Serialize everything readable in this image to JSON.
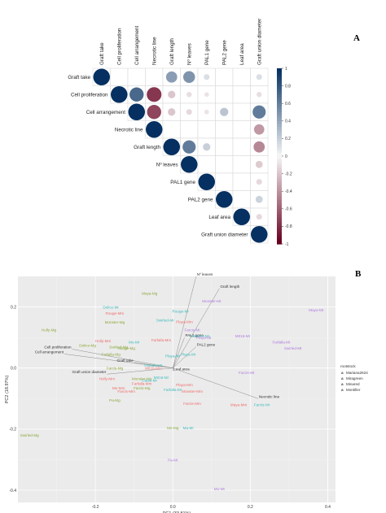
{
  "panel_a_label": "A",
  "panel_b_label": "B",
  "chart_data": [
    {
      "type": "heatmap",
      "variables": [
        "Graft take",
        "Cell proliferation",
        "Cell arrangement",
        "Necrotic line",
        "Graft length",
        "Nº leaves",
        "PAL1 gene",
        "PAL2 gene",
        "Leaf area",
        "Graft union diameter"
      ],
      "matrix": [
        [
          1,
          0,
          0,
          0,
          0.45,
          0.5,
          0.12,
          0,
          0,
          0.12
        ],
        [
          null,
          1,
          0.72,
          -0.78,
          -0.2,
          -0.1,
          -0.08,
          0,
          0,
          -0.1
        ],
        [
          null,
          null,
          1,
          -0.72,
          -0.2,
          -0.12,
          -0.08,
          0.25,
          0,
          0.62
        ],
        [
          null,
          null,
          null,
          1,
          0,
          0,
          0,
          0,
          0,
          -0.38
        ],
        [
          null,
          null,
          null,
          null,
          1,
          0.62,
          0.2,
          0,
          0,
          -0.45
        ],
        [
          null,
          null,
          null,
          null,
          null,
          1,
          0,
          0,
          0,
          -0.18
        ],
        [
          null,
          null,
          null,
          null,
          null,
          null,
          1,
          0,
          0,
          -0.12
        ],
        [
          null,
          null,
          null,
          null,
          null,
          null,
          null,
          1,
          0,
          0.18
        ],
        [
          null,
          null,
          null,
          null,
          null,
          null,
          null,
          null,
          1,
          -0.12
        ],
        [
          null,
          null,
          null,
          null,
          null,
          null,
          null,
          null,
          null,
          1
        ]
      ],
      "colorbar_ticks": [
        "1",
        "0.8",
        "0.6",
        "0.4",
        "0.2",
        "0",
        "-0.2",
        "-0.4",
        "-0.6",
        "-0.8",
        "-1"
      ],
      "colors": {
        "negative": "#67001F",
        "neutral": "#F7F7F7",
        "positive": "#053061"
      }
    },
    {
      "type": "scatter",
      "xlabel": "PC1 (33.81%)",
      "ylabel": "PC2 (18.97%)",
      "xlim": [
        -0.4,
        0.42
      ],
      "ylim": [
        -0.44,
        0.3
      ],
      "xticks": [
        "-0.2",
        "0.0",
        "0.2",
        "0.4"
      ],
      "yticks": [
        "0.2",
        "0.0",
        "-0.2",
        "-0.4"
      ],
      "xtick_values": [
        -0.2,
        0.0,
        0.2,
        0.4
      ],
      "ytick_values": [
        0.2,
        0.0,
        -0.2,
        -0.4
      ],
      "legend_title": "rootstock",
      "legend_position": "right",
      "series": [
        {
          "name": "Mariana2624",
          "color": "#F06E6E",
          "points": [
            {
              "label": "Rouge-Mm",
              "x": -0.15,
              "y": 0.175
            },
            {
              "label": "Playa-Mm",
              "x": 0.03,
              "y": 0.147
            },
            {
              "label": "Farfalla-Mm",
              "x": -0.03,
              "y": 0.087
            },
            {
              "label": "Holly-Mm",
              "x": -0.18,
              "y": 0.085
            },
            {
              "label": "M016-Mm",
              "x": -0.05,
              "y": -0.005
            },
            {
              "label": "Holly-Mm",
              "x": -0.17,
              "y": -0.04
            },
            {
              "label": "Farfalla-Mm",
              "x": -0.08,
              "y": -0.055
            },
            {
              "label": "Mo-Mm",
              "x": -0.14,
              "y": -0.07
            },
            {
              "label": "Farcis-Mm",
              "x": -0.12,
              "y": -0.08
            },
            {
              "label": "Playa-Mm",
              "x": 0.03,
              "y": -0.06
            },
            {
              "label": "Monster-Mm",
              "x": 0.05,
              "y": -0.08
            },
            {
              "label": "Farcis-Mm",
              "x": 0.05,
              "y": -0.12
            },
            {
              "label": "Maya-Mm",
              "x": 0.17,
              "y": -0.125
            }
          ]
        },
        {
          "name": "Miragreen",
          "color": "#8CA83C",
          "points": [
            {
              "label": "Maya-Mg",
              "x": -0.06,
              "y": 0.24
            },
            {
              "label": "Monster-Mg",
              "x": -0.15,
              "y": 0.145
            },
            {
              "label": "Hully-Mg",
              "x": -0.32,
              "y": 0.12
            },
            {
              "label": "Delice-Mg",
              "x": -0.22,
              "y": 0.07
            },
            {
              "label": "Swirled-Mg",
              "x": -0.14,
              "y": 0.065
            },
            {
              "label": "Rouge-Mg",
              "x": -0.12,
              "y": 0.06
            },
            {
              "label": "Farfalla-Mg",
              "x": -0.16,
              "y": 0.04
            },
            {
              "label": "Farcis-Mg",
              "x": -0.15,
              "y": -0.005
            },
            {
              "label": "Monster-Mg",
              "x": -0.08,
              "y": -0.04
            },
            {
              "label": "Farcis-Mg",
              "x": -0.08,
              "y": -0.07
            },
            {
              "label": "Pa-Mg",
              "x": -0.15,
              "y": -0.11
            },
            {
              "label": "Swirled-Mg",
              "x": -0.37,
              "y": -0.225
            },
            {
              "label": "Mo-Mg",
              "x": 0.0,
              "y": -0.2
            }
          ]
        },
        {
          "name": "Minared",
          "color": "#3DBBBB",
          "points": [
            {
              "label": "Delice-Mr",
              "x": -0.16,
              "y": 0.195
            },
            {
              "label": "Rouge-Mr",
              "x": 0.02,
              "y": 0.182
            },
            {
              "label": "Swirled-Mr",
              "x": -0.02,
              "y": 0.152
            },
            {
              "label": "Monster-Mr",
              "x": 0.07,
              "y": 0.1
            },
            {
              "label": "Mo-Mr",
              "x": -0.1,
              "y": 0.08
            },
            {
              "label": "Farfalla-Mr",
              "x": -0.05,
              "y": 0.005
            },
            {
              "label": "Playa-Mr",
              "x": 0.04,
              "y": 0.04
            },
            {
              "label": "Playa-Mr",
              "x": 0.0,
              "y": 0.035
            },
            {
              "label": "M016-Mr",
              "x": -0.03,
              "y": -0.035
            },
            {
              "label": "Cadiz-Mr",
              "x": -0.06,
              "y": -0.045
            },
            {
              "label": "Farfalla-Mr",
              "x": 0.0,
              "y": -0.075
            },
            {
              "label": "Farcis-Mr",
              "x": 0.23,
              "y": -0.125
            },
            {
              "label": "Ma-Mr",
              "x": 0.04,
              "y": -0.2
            }
          ]
        },
        {
          "name": "Montiller",
          "color": "#B07CE0",
          "points": [
            {
              "label": "Monster-Mt",
              "x": 0.1,
              "y": 0.215
            },
            {
              "label": "Maya-Mt",
              "x": 0.37,
              "y": 0.185
            },
            {
              "label": "Farcis-Mt",
              "x": 0.05,
              "y": 0.12
            },
            {
              "label": "M016-Mt",
              "x": 0.18,
              "y": 0.1
            },
            {
              "label": "Playa-Mt",
              "x": 0.08,
              "y": 0.095
            },
            {
              "label": "Farfalla-Mt",
              "x": 0.28,
              "y": 0.08
            },
            {
              "label": "Swirled-Mt",
              "x": 0.31,
              "y": 0.06
            },
            {
              "label": "Farcis-Mt",
              "x": 0.19,
              "y": -0.02
            },
            {
              "label": "Pa-Mt",
              "x": 0.0,
              "y": -0.305
            },
            {
              "label": "Mo-Mt",
              "x": 0.12,
              "y": -0.4
            }
          ]
        }
      ],
      "vectors": [
        {
          "label": "Nº leaves",
          "x": 0.06,
          "y": 0.3
        },
        {
          "label": "Graft length",
          "x": 0.12,
          "y": 0.26
        },
        {
          "label": "PAL1 gene",
          "x": 0.03,
          "y": 0.1
        },
        {
          "label": "PAL2 gene",
          "x": 0.06,
          "y": 0.07
        },
        {
          "label": "Cell proliferation",
          "x": -0.26,
          "y": 0.062
        },
        {
          "label": "Cell arrangement",
          "x": -0.28,
          "y": 0.046
        },
        {
          "label": "Graft take",
          "x": -0.1,
          "y": 0.018
        },
        {
          "label": "Leaf area",
          "x": 0.0,
          "y": -0.01
        },
        {
          "label": "Graft union diameter",
          "x": -0.17,
          "y": -0.02
        },
        {
          "label": "Necrotic line",
          "x": 0.22,
          "y": -0.1
        }
      ]
    }
  ]
}
